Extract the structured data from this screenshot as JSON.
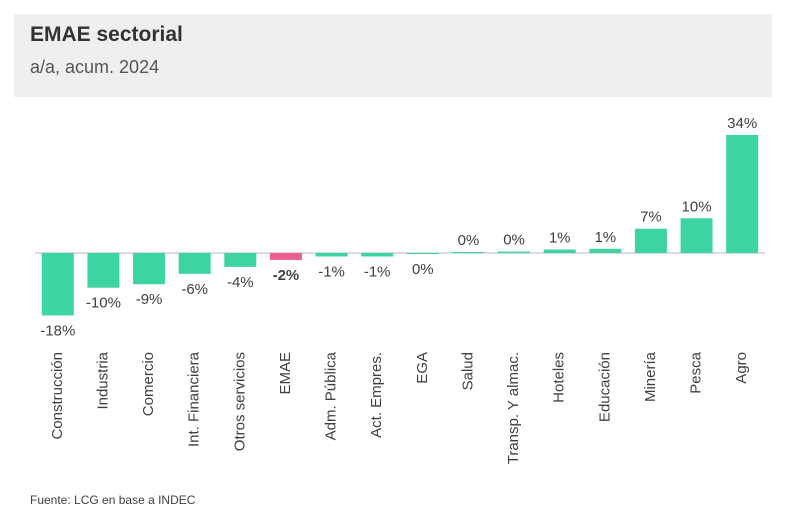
{
  "chart_data": {
    "type": "bar",
    "title": "EMAE sectorial",
    "subtitle": "a/a, acum. 2024",
    "categories": [
      "Construcción",
      "Industria",
      "Comercio",
      "Int. Financiera",
      "Otros servicios",
      "EMAE",
      "Adm. Pública",
      "Act. Empres.",
      "EGA",
      "Salud",
      "Transp. Y almac.",
      "Hoteles",
      "Educación",
      "Minería",
      "Pesca",
      "Agro"
    ],
    "values": [
      -18,
      -10,
      -9,
      -6,
      -4,
      -2,
      -1,
      -1,
      -0.3,
      0.3,
      0.4,
      1,
      1.2,
      7,
      10,
      34
    ],
    "value_labels": [
      "-18%",
      "-10%",
      "-9%",
      "-6%",
      "-4%",
      "-2%",
      "-1%",
      "-1%",
      "0%",
      "0%",
      "0%",
      "1%",
      "1%",
      "7%",
      "10%",
      "34%"
    ],
    "colors": [
      "#3dd4a0",
      "#3dd4a0",
      "#3dd4a0",
      "#3dd4a0",
      "#3dd4a0",
      "#ec5f8e",
      "#3dd4a0",
      "#3dd4a0",
      "#3dd4a0",
      "#3dd4a0",
      "#3dd4a0",
      "#3dd4a0",
      "#3dd4a0",
      "#3dd4a0",
      "#3dd4a0",
      "#3dd4a0"
    ],
    "source": "Fuente: LCG en base a INDEC"
  }
}
